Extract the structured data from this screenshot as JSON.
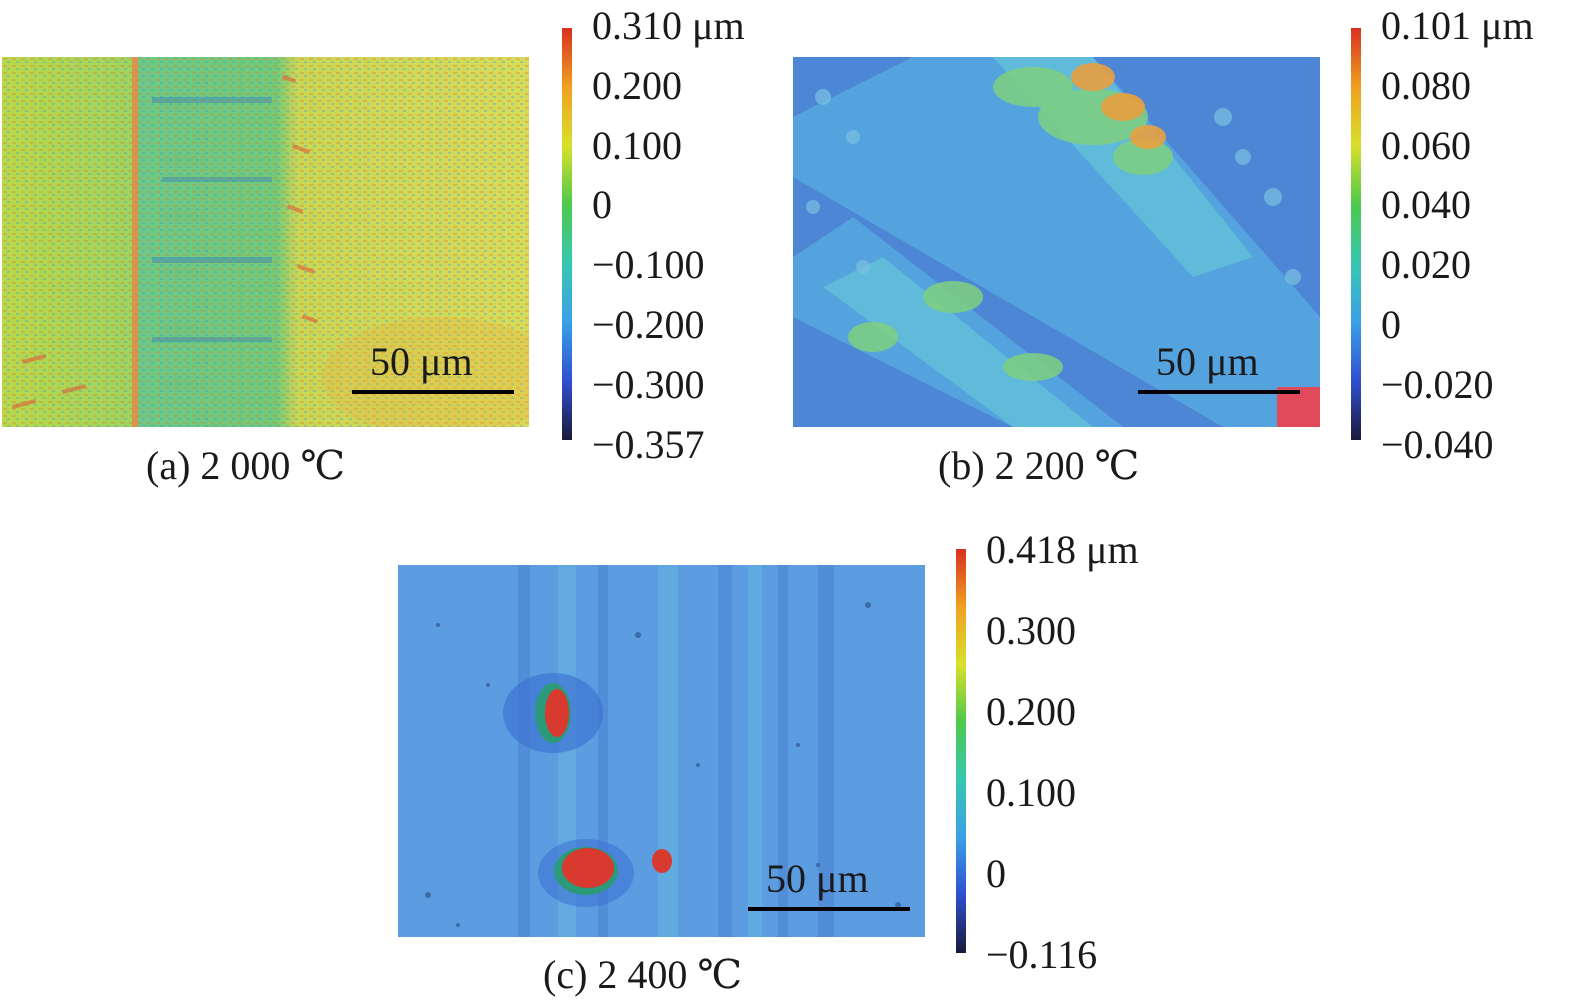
{
  "panels": [
    {
      "caption": "(a) 2 000 ℃",
      "scale_bar": "50 μm",
      "colorbar": {
        "ticks": [
          "0.310 μm",
          "0.200",
          "0.100",
          "0",
          "−0.100",
          "−0.200",
          "−0.300",
          "−0.357"
        ],
        "min": -0.357,
        "max": 0.31
      }
    },
    {
      "caption": "(b) 2 200 ℃",
      "scale_bar": "50 μm",
      "colorbar": {
        "ticks": [
          "0.101 μm",
          "0.080",
          "0.060",
          "0.040",
          "0.020",
          "0",
          "−0.020",
          "−0.040"
        ],
        "min": -0.04,
        "max": 0.101
      }
    },
    {
      "caption": "(c) 2 400 ℃",
      "scale_bar": "50 μm",
      "colorbar": {
        "ticks": [
          "0.418 μm",
          "0.300",
          "0.200",
          "0.100",
          "0",
          "−0.116"
        ],
        "min": -0.116,
        "max": 0.418
      }
    }
  ],
  "colormap": [
    "#1a1a3a",
    "#2f4fd0",
    "#3aa0e8",
    "#37c7b0",
    "#4cc94c",
    "#d8e02a",
    "#f0a020",
    "#d83020"
  ]
}
